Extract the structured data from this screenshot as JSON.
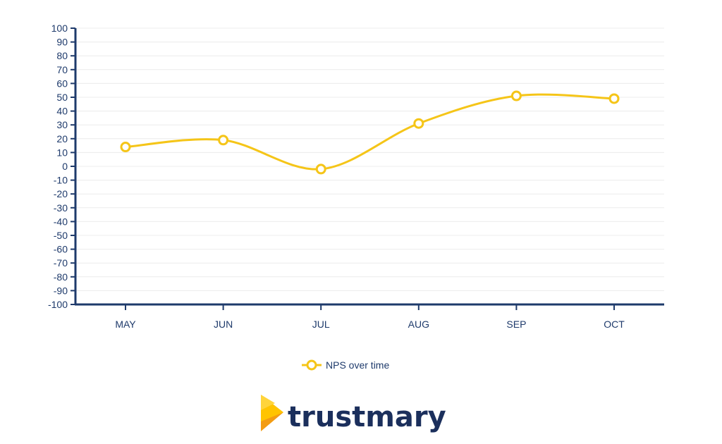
{
  "chart_data": {
    "type": "line",
    "categories": [
      "MAY",
      "JUN",
      "JUL",
      "AUG",
      "SEP",
      "OCT"
    ],
    "series": [
      {
        "name": "NPS over time",
        "values": [
          14,
          19,
          -2,
          31,
          51,
          49
        ]
      }
    ],
    "ylim": [
      -100,
      100
    ],
    "yticks": [
      100,
      90,
      80,
      70,
      60,
      50,
      40,
      30,
      20,
      10,
      0,
      -10,
      -20,
      -30,
      -40,
      -50,
      -60,
      -70,
      -80,
      -90,
      -100
    ],
    "grid": true,
    "legend_position": "bottom-center",
    "colors": {
      "line": "#F5C518",
      "axis": "#1e3a6b",
      "grid": "#ececec"
    }
  },
  "legend": {
    "label": "NPS over time"
  },
  "brand": {
    "name": "trustmary",
    "colors": {
      "mark_light": "#FFC400",
      "mark_dark": "#F39C12",
      "text": "#1b2f5c"
    }
  }
}
